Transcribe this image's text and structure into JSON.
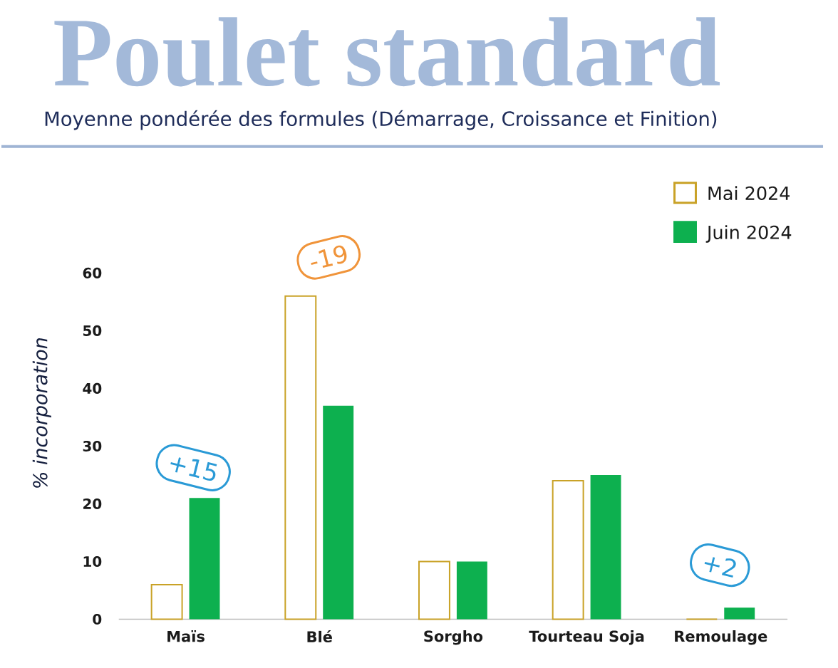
{
  "chart_data": {
    "type": "bar",
    "title": "Poulet standard",
    "subtitle": "Moyenne pondérée des formules (Démarrage, Croissance et Finition)",
    "ylabel": "% incorporation",
    "categories": [
      "Maïs",
      "Blé",
      "Sorgho",
      "Tourteau Soja",
      "Remoulage"
    ],
    "series": [
      {
        "name": "Mai 2024",
        "color": "#c9a227",
        "values": [
          6,
          56,
          10,
          24,
          0
        ]
      },
      {
        "name": "Juin 2024",
        "color": "#0db04f",
        "values": [
          21,
          37,
          10,
          25,
          2
        ]
      }
    ],
    "ylim": [
      0,
      60
    ],
    "yticks": [
      0,
      10,
      20,
      30,
      40,
      50,
      60
    ],
    "legend": "top right",
    "annotations": [
      {
        "text": "+15",
        "x": "Maïs",
        "y": 21
      },
      "-19",
      "+2"
    ]
  }
}
